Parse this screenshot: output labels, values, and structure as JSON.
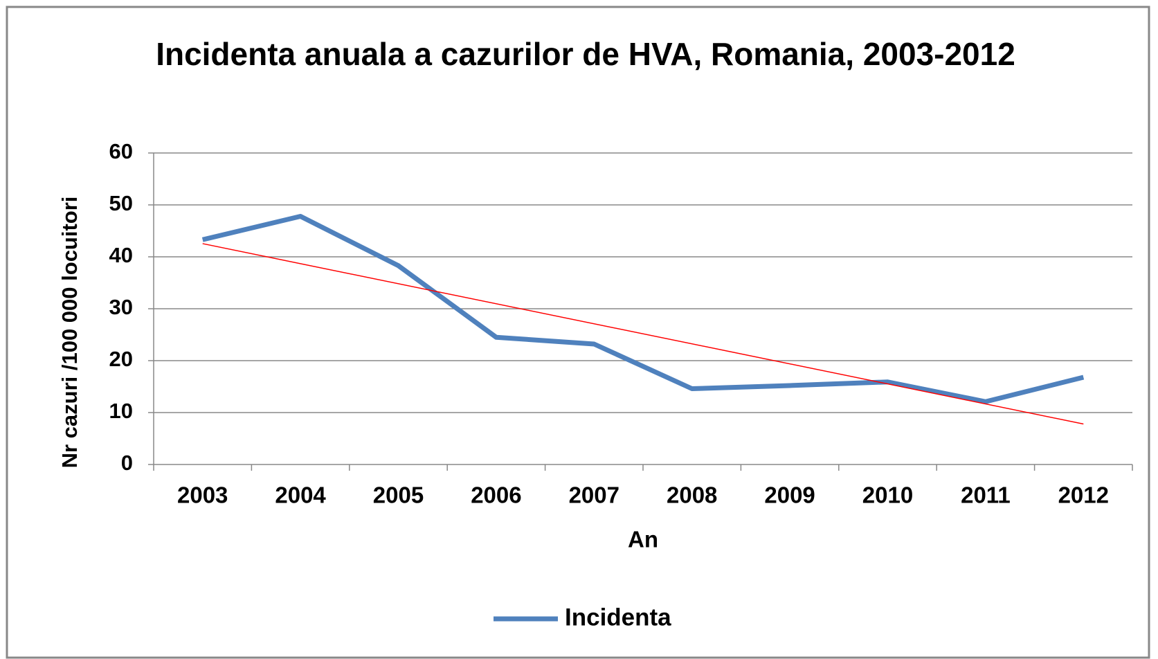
{
  "chart_data": {
    "type": "line",
    "title": "Incidenta anuala a cazurilor de HVA, Romania, 2003-2012",
    "x_label": "An",
    "y_label": "Nr cazuri /100 000 locuitori",
    "categories": [
      "2003",
      "2004",
      "2005",
      "2006",
      "2007",
      "2008",
      "2009",
      "2010",
      "2011",
      "2012"
    ],
    "series": [
      {
        "name": "Incidenta",
        "color": "#4f81bd",
        "values": [
          43.3,
          47.8,
          38.3,
          24.5,
          23.2,
          14.6,
          15.2,
          15.9,
          12.1,
          16.8
        ]
      }
    ],
    "trendline": {
      "type": "linear",
      "color": "#ff0000"
    },
    "ylim": [
      0,
      60
    ],
    "yticks": [
      0,
      10,
      20,
      30,
      40,
      50,
      60
    ],
    "grid": true,
    "legend": "bottom"
  }
}
